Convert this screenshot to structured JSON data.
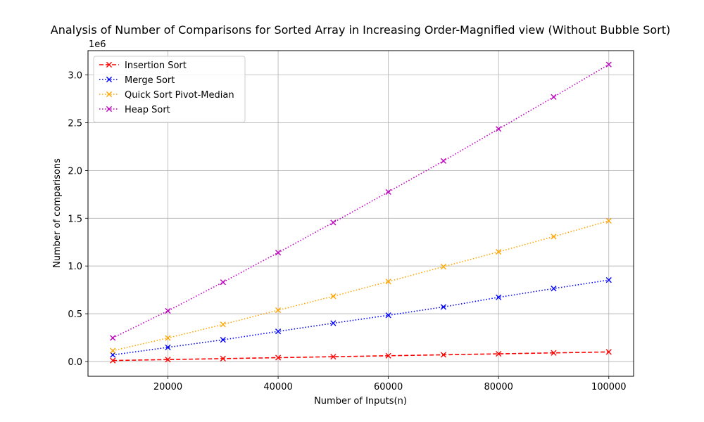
{
  "chart_data": {
    "type": "line",
    "title": "Analysis of Number of Comparisons for Sorted Array in Increasing Order-Magnified view (Without Bubble Sort)",
    "xlabel": "Number of Inputs(n)",
    "ylabel": "Number of comparisons",
    "y_offset_label": "1e6",
    "xlim": [
      5500,
      104500
    ],
    "ylim": [
      -0.155,
      3.255
    ],
    "y_scale_note": "values in units of 1e6",
    "x_ticks": [
      20000,
      40000,
      60000,
      80000,
      100000
    ],
    "x_tick_labels": [
      "20000",
      "40000",
      "60000",
      "80000",
      "100000"
    ],
    "y_ticks": [
      0.0,
      0.5,
      1.0,
      1.5,
      2.0,
      2.5,
      3.0
    ],
    "y_tick_labels": [
      "0.0",
      "0.5",
      "1.0",
      "1.5",
      "2.0",
      "2.5",
      "3.0"
    ],
    "grid": true,
    "legend_position": "upper-left",
    "x": [
      10000,
      20000,
      30000,
      40000,
      50000,
      60000,
      70000,
      80000,
      90000,
      100000
    ],
    "series": [
      {
        "name": "Insertion Sort",
        "color": "#ff0000",
        "linestyle": "dashed",
        "marker": "x",
        "values": [
          0.01,
          0.02,
          0.03,
          0.04,
          0.05,
          0.06,
          0.07,
          0.08,
          0.09,
          0.1
        ]
      },
      {
        "name": "Merge Sort",
        "color": "#0000ff",
        "linestyle": "dotted",
        "marker": "x",
        "values": [
          0.069,
          0.148,
          0.227,
          0.315,
          0.401,
          0.484,
          0.571,
          0.672,
          0.764,
          0.853
        ]
      },
      {
        "name": "Quick Sort Pivot-Median",
        "color": "#ffa500",
        "linestyle": "dotted",
        "marker": "x",
        "values": [
          0.113,
          0.246,
          0.388,
          0.537,
          0.683,
          0.837,
          0.993,
          1.148,
          1.308,
          1.473
        ]
      },
      {
        "name": "Heap Sort",
        "color": "#bf00bf",
        "linestyle": "dotted",
        "marker": "x",
        "values": [
          0.247,
          0.53,
          0.83,
          1.14,
          1.455,
          1.775,
          2.1,
          2.435,
          2.77,
          3.11
        ]
      }
    ]
  }
}
